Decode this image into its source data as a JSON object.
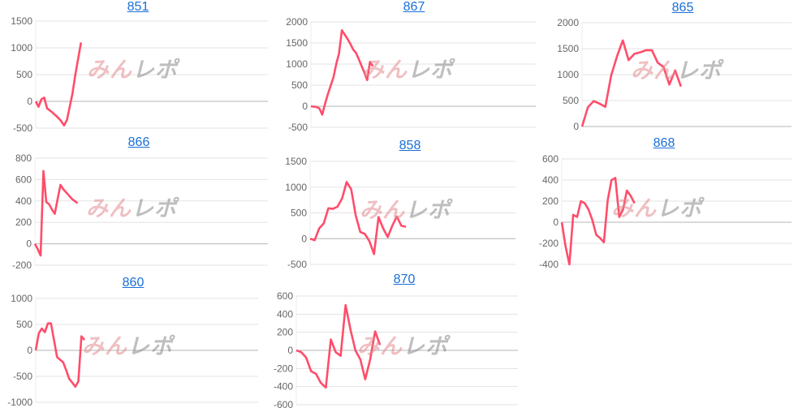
{
  "watermark": {
    "part1": "みん",
    "part2": "レポ"
  },
  "colors": {
    "line": "#ff4d6a",
    "grid": "#e3e3e3",
    "zero_line": "#b5b5b5",
    "title_link": "#1a6fd6"
  },
  "chart_data": [
    {
      "type": "line",
      "title": "851",
      "ylim": [
        -500,
        1500
      ],
      "ticks": [
        1500,
        1000,
        500,
        0,
        -500
      ],
      "x_max": 82,
      "grid": true,
      "values": [
        0,
        -100,
        40,
        70,
        -130,
        -170,
        -210,
        -260,
        -310,
        -370,
        -450,
        -350,
        -100,
        150,
        500,
        800,
        1100
      ]
    },
    {
      "type": "line",
      "title": "867",
      "ylim": [
        -500,
        2000
      ],
      "ticks": [
        2000,
        1500,
        1000,
        500,
        0,
        -500
      ],
      "x_max": 80,
      "grid": true,
      "values": [
        0,
        -10,
        -20,
        -50,
        -200,
        50,
        280,
        480,
        680,
        1000,
        1250,
        1800,
        1700,
        1600,
        1480,
        1350,
        1270,
        1120,
        960,
        800,
        620,
        1050,
        950
      ]
    },
    {
      "type": "line",
      "title": "865",
      "ylim": [
        0,
        2000
      ],
      "ticks": [
        2000,
        1500,
        1000,
        500,
        0
      ],
      "x_max": 36,
      "grid": true,
      "values": [
        0,
        370,
        490,
        440,
        380,
        980,
        1350,
        1660,
        1280,
        1400,
        1430,
        1470,
        1470,
        1230,
        1150,
        810,
        1080,
        770
      ]
    },
    {
      "type": "line",
      "title": "866",
      "ylim": [
        -200,
        800
      ],
      "ticks": [
        800,
        600,
        400,
        200,
        0,
        -200
      ],
      "x_max": 82,
      "grid": true,
      "values": [
        0,
        -50,
        -110,
        680,
        390,
        370,
        320,
        280,
        420,
        550,
        510,
        480,
        450,
        420,
        400,
        380
      ]
    },
    {
      "type": "line",
      "title": "858",
      "ylim": [
        -500,
        1500
      ],
      "ticks": [
        1500,
        1000,
        500,
        0,
        -500
      ],
      "x_max": 45,
      "grid": true,
      "values": [
        0,
        -30,
        200,
        300,
        590,
        580,
        620,
        780,
        1100,
        960,
        450,
        130,
        90,
        -50,
        -300,
        420,
        200,
        30,
        250,
        430,
        250,
        230
      ]
    },
    {
      "type": "line",
      "title": "868",
      "ylim": [
        -400,
        600
      ],
      "ticks": [
        600,
        400,
        200,
        0,
        -200,
        -400
      ],
      "x_max": 60,
      "grid": true,
      "values": [
        0,
        -230,
        -400,
        70,
        50,
        200,
        180,
        120,
        20,
        -120,
        -150,
        -190,
        210,
        400,
        420,
        50,
        120,
        300,
        250,
        180
      ]
    },
    {
      "type": "line",
      "title": "860",
      "ylim": [
        -1000,
        1000
      ],
      "ticks": [
        1000,
        500,
        0,
        -500,
        -1000
      ],
      "x_max": 73,
      "grid": true,
      "values": [
        0,
        330,
        420,
        350,
        520,
        520,
        200,
        -130,
        -180,
        -230,
        -380,
        -550,
        -620,
        -700,
        -600,
        270,
        200
      ]
    },
    {
      "type": "line",
      "title": "870",
      "ylim": [
        -600,
        600
      ],
      "ticks": [
        600,
        400,
        200,
        0,
        -200,
        -400,
        -600
      ],
      "x_max": 45,
      "grid": true,
      "values": [
        0,
        -20,
        -80,
        -230,
        -260,
        -360,
        -410,
        120,
        -20,
        -60,
        500,
        230,
        0,
        -100,
        -320,
        -100,
        210,
        60
      ]
    }
  ]
}
